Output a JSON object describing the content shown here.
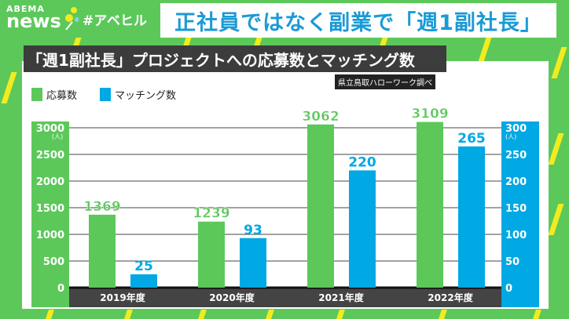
{
  "header": {
    "logo_top": "ABEMA",
    "logo_bottom": "news",
    "hashtag": "#アベヒル",
    "headline": "正社員ではなく副業で「週1副社長」"
  },
  "colors": {
    "background": "#5cc85a",
    "applications": "#5cc85a",
    "matchings": "#00a8e4",
    "headline": "#1a9ad6",
    "accent_stripes": "#f2ec1e"
  },
  "chart_data": {
    "type": "bar",
    "title": "「週1副社長」プロジェクトへの応募数とマッチング数",
    "source": "県立鳥取ハローワーク調べ",
    "categories": [
      "2019年度",
      "2020年度",
      "2021年度",
      "2022年度"
    ],
    "series": [
      {
        "name": "応募数",
        "values": [
          1369,
          1239,
          3062,
          3109
        ],
        "axis": "left"
      },
      {
        "name": "マッチング数",
        "values": [
          25,
          93,
          220,
          265
        ],
        "axis": "right"
      }
    ],
    "left_axis": {
      "unit": "(人)",
      "ylim": [
        0,
        3000
      ],
      "ticks": [
        "0",
        "500",
        "1000",
        "1500",
        "2000",
        "2500",
        "3000"
      ]
    },
    "right_axis": {
      "unit": "(人)",
      "ylim": [
        0,
        300
      ],
      "ticks": [
        "0",
        "50",
        "100",
        "150",
        "200",
        "250",
        "300"
      ]
    },
    "grid": true,
    "legend": "top-left"
  }
}
